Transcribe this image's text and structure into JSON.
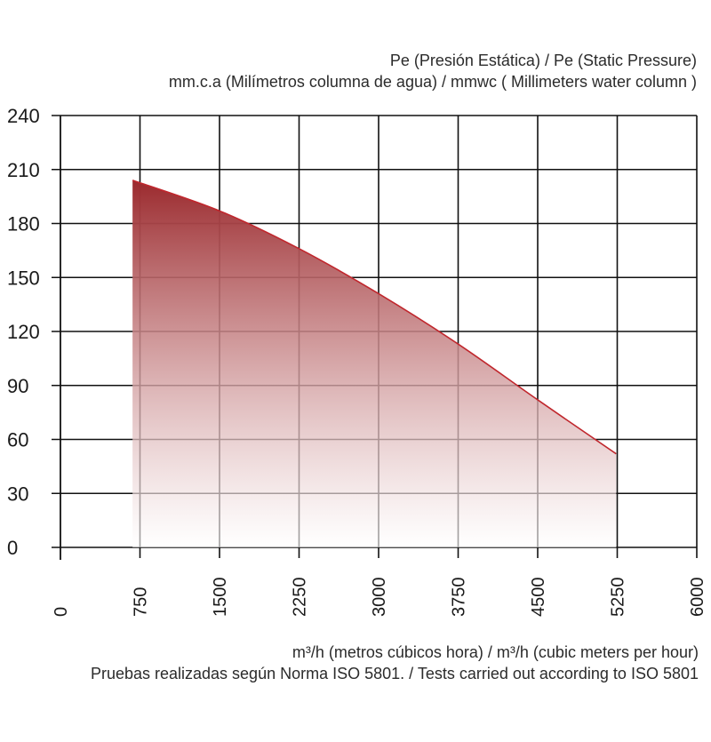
{
  "chart_data": {
    "type": "area",
    "ylabel_lines": [
      "Pe (Presión Estática) /  Pe (Static Pressure)",
      "mm.c.a (Milímetros columna de agua) / mmwc ( Millimeters water column )"
    ],
    "xlabel_lines": [
      "m³/h (metros cúbicos hora) / m³/h (cubic meters per hour)",
      "Pruebas realizadas según Norma ISO 5801. / Tests carried out according to ISO 5801"
    ],
    "xlim": [
      0,
      6000
    ],
    "ylim": [
      0,
      240
    ],
    "x_ticks": [
      0,
      750,
      1500,
      2250,
      3000,
      3750,
      4500,
      5250,
      6000
    ],
    "y_ticks": [
      0,
      30,
      60,
      90,
      120,
      150,
      180,
      210,
      240
    ],
    "grid": true,
    "series": [
      {
        "x": [
          680,
          1500,
          2250,
          3000,
          3750,
          4500,
          5240
        ],
        "y": [
          204,
          187,
          166,
          141,
          113,
          82,
          52
        ]
      }
    ],
    "colors": {
      "line": "#c0272d",
      "fill_top": "#9b2a2e",
      "fill_bottom": "#ffffff",
      "grid": "#111111"
    }
  }
}
